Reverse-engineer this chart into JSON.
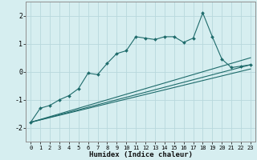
{
  "xlabel": "Humidex (Indice chaleur)",
  "ylabel": "",
  "xlim": [
    -0.5,
    23.5
  ],
  "ylim": [
    -2.5,
    2.5
  ],
  "xticks": [
    0,
    1,
    2,
    3,
    4,
    5,
    6,
    7,
    8,
    9,
    10,
    11,
    12,
    13,
    14,
    15,
    16,
    17,
    18,
    19,
    20,
    21,
    22,
    23
  ],
  "yticks": [
    -2,
    -1,
    0,
    1,
    2
  ],
  "bg_color": "#d6eef0",
  "grid_color": "#b8d8dc",
  "line_color": "#1e6b6b",
  "main_series_x": [
    0,
    1,
    2,
    3,
    4,
    5,
    6,
    7,
    8,
    9,
    10,
    11,
    12,
    13,
    14,
    15,
    16,
    17,
    18,
    19,
    20,
    21,
    22,
    23
  ],
  "main_series_y": [
    -1.8,
    -1.3,
    -1.2,
    -1.0,
    -0.85,
    -0.6,
    -0.05,
    -0.1,
    0.3,
    0.65,
    0.75,
    1.25,
    1.2,
    1.15,
    1.25,
    1.25,
    1.05,
    1.2,
    2.1,
    1.25,
    0.45,
    0.15,
    0.2,
    0.25
  ],
  "line1_x": [
    0,
    23
  ],
  "line1_y": [
    -1.8,
    0.25
  ],
  "line2_x": [
    0,
    23
  ],
  "line2_y": [
    -1.8,
    0.1
  ],
  "line3_x": [
    0,
    23
  ],
  "line3_y": [
    -1.8,
    0.5
  ]
}
